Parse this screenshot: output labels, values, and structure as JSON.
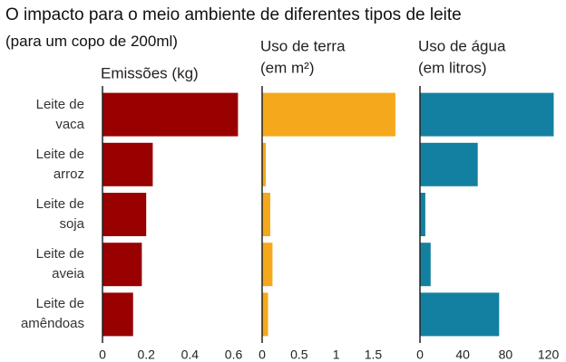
{
  "header": {
    "title": "O impacto para o meio ambiente de diferentes tipos de leite",
    "subtitle": "(para um copo de 200ml)"
  },
  "chart_data": [
    {
      "type": "bar",
      "orientation": "horizontal",
      "title": "Emissões (kg)",
      "categories": [
        "Leite de vaca",
        "Leite de arroz",
        "Leite de soja",
        "Leite de aveia",
        "Leite de amêndoas"
      ],
      "values": [
        0.62,
        0.23,
        0.2,
        0.18,
        0.14
      ],
      "color": "#990000",
      "xlim": [
        0,
        0.66
      ],
      "xticks": [
        0,
        0.2,
        0.4,
        0.6
      ]
    },
    {
      "type": "bar",
      "orientation": "horizontal",
      "title": "Uso de terra",
      "subtitle": "(em m²)",
      "values": [
        1.8,
        0.05,
        0.11,
        0.14,
        0.08
      ],
      "color": "#f5a81c",
      "xlim": [
        0,
        1.85
      ],
      "xticks": [
        0,
        0.5,
        1,
        1.5
      ]
    },
    {
      "type": "bar",
      "orientation": "horizontal",
      "title": "Uso de água",
      "subtitle": "(em litros)",
      "values": [
        125,
        54,
        5,
        10,
        74
      ],
      "color": "#1380a1",
      "xlim": [
        0,
        128
      ],
      "xticks": [
        0,
        40,
        80,
        120
      ]
    }
  ]
}
